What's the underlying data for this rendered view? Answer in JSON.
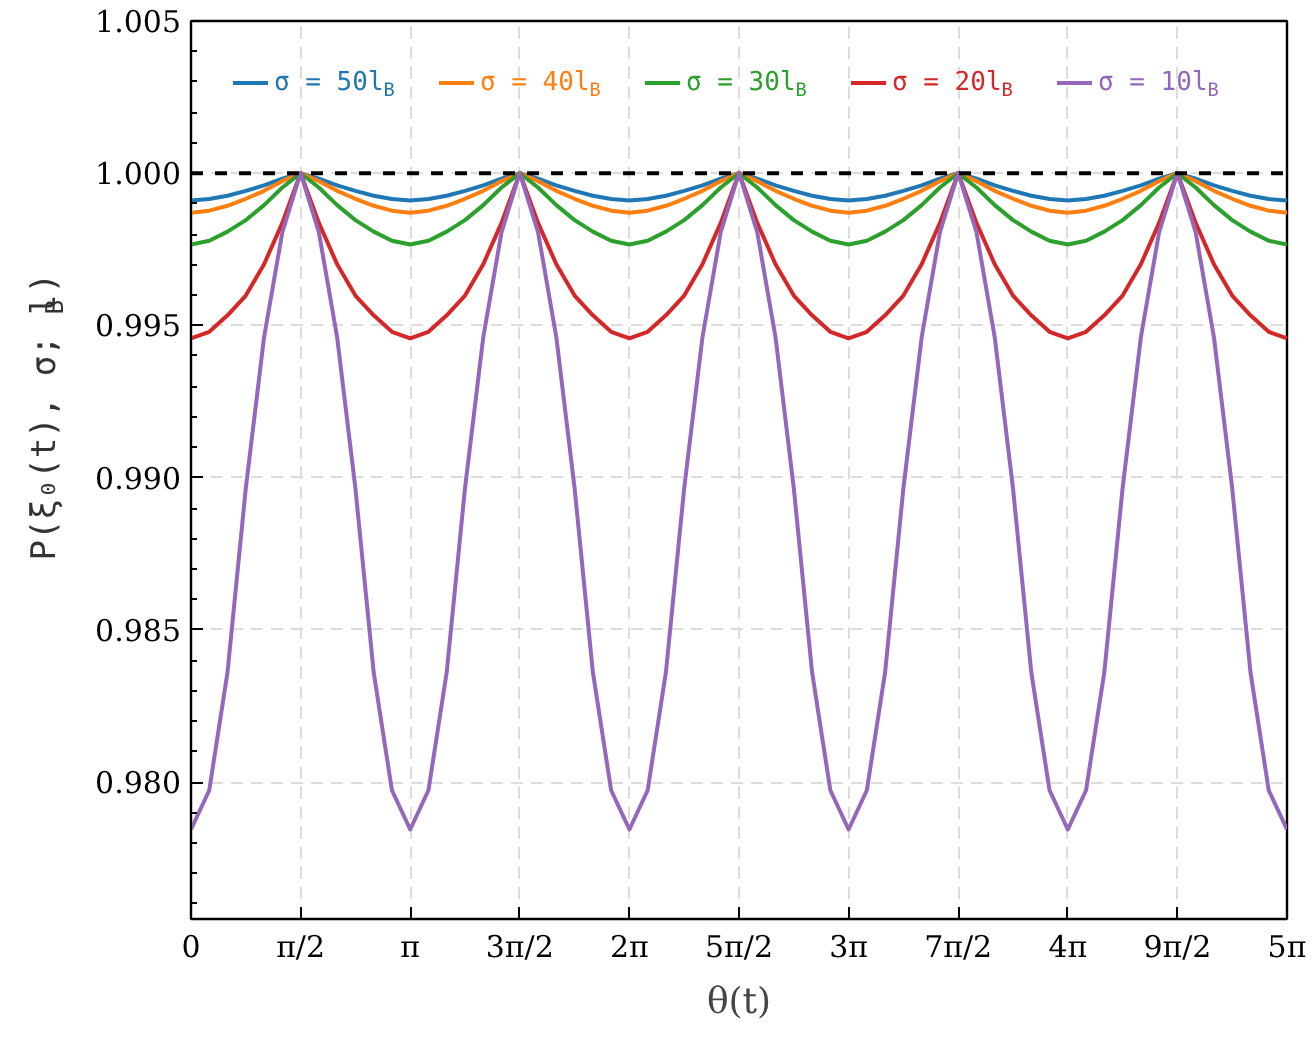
{
  "chart_data": {
    "type": "line",
    "xlabel": "θ(t)",
    "ylabel": "P(ξ₀(t), σ; l$_{B}$)",
    "x": [
      0,
      0.2618,
      0.5236,
      0.7854,
      1.0472,
      1.309,
      1.5708,
      1.8326,
      2.0944,
      2.3562,
      2.618,
      2.8798,
      3.1416,
      3.4034,
      3.6652,
      3.927,
      4.1888,
      4.4506,
      4.7124,
      4.9742,
      5.236,
      5.4978,
      5.7596,
      6.0214,
      6.2832,
      6.545,
      6.8068,
      7.0686,
      7.3304,
      7.5922,
      7.854,
      8.1158,
      8.3776,
      8.6394,
      8.9012,
      9.163,
      9.4248,
      9.6866,
      9.9484,
      10.2102,
      10.472,
      10.7338,
      10.9956,
      11.2574,
      11.5192,
      11.781,
      12.0428,
      12.3046,
      12.5664,
      12.8282,
      13.09,
      13.3518,
      13.6136,
      13.8754,
      14.1372,
      14.399,
      14.6608,
      14.9226,
      15.1844,
      15.4462,
      15.708
    ],
    "series": [
      {
        "name": "σ = 50l$_{B}$",
        "color": "#1f77b4",
        "values": [
          0.9991,
          0.99915,
          0.99926,
          0.99942,
          0.9996,
          0.99982,
          1.0,
          0.99982,
          0.9996,
          0.99942,
          0.99926,
          0.99915,
          0.9991,
          0.99915,
          0.99926,
          0.99942,
          0.9996,
          0.99982,
          1.0,
          0.99982,
          0.9996,
          0.99942,
          0.99926,
          0.99915,
          0.9991,
          0.99915,
          0.99926,
          0.99942,
          0.9996,
          0.99982,
          1.0,
          0.99982,
          0.9996,
          0.99942,
          0.99926,
          0.99915,
          0.9991,
          0.99915,
          0.99926,
          0.99942,
          0.9996,
          0.99982,
          1.0,
          0.99982,
          0.9996,
          0.99942,
          0.99926,
          0.99915,
          0.9991,
          0.99915,
          0.99926,
          0.99942,
          0.9996,
          0.99982,
          1.0,
          0.99982,
          0.9996,
          0.99942,
          0.99926,
          0.99915,
          0.9991
        ]
      },
      {
        "name": "σ = 40l$_{B}$",
        "color": "#ff7f0e",
        "values": [
          0.9987,
          0.99877,
          0.99893,
          0.99916,
          0.99942,
          0.99974,
          1.0,
          0.99974,
          0.99942,
          0.99916,
          0.99893,
          0.99877,
          0.9987,
          0.99877,
          0.99893,
          0.99916,
          0.99942,
          0.99974,
          1.0,
          0.99974,
          0.99942,
          0.99916,
          0.99893,
          0.99877,
          0.9987,
          0.99877,
          0.99893,
          0.99916,
          0.99942,
          0.99974,
          1.0,
          0.99974,
          0.99942,
          0.99916,
          0.99893,
          0.99877,
          0.9987,
          0.99877,
          0.99893,
          0.99916,
          0.99942,
          0.99974,
          1.0,
          0.99974,
          0.99942,
          0.99916,
          0.99893,
          0.99877,
          0.9987,
          0.99877,
          0.99893,
          0.99916,
          0.99942,
          0.99974,
          1.0,
          0.99974,
          0.99942,
          0.99916,
          0.99893,
          0.99877,
          0.9987
        ]
      },
      {
        "name": "σ = 30l$_{B}$",
        "color": "#2ca02c",
        "values": [
          0.99766,
          0.99778,
          0.99808,
          0.99846,
          0.99895,
          0.99953,
          1.0,
          0.99953,
          0.99895,
          0.99846,
          0.99808,
          0.99778,
          0.99766,
          0.99778,
          0.99808,
          0.99846,
          0.99895,
          0.99953,
          1.0,
          0.99953,
          0.99895,
          0.99846,
          0.99808,
          0.99778,
          0.99766,
          0.99778,
          0.99808,
          0.99846,
          0.99895,
          0.99953,
          1.0,
          0.99953,
          0.99895,
          0.99846,
          0.99808,
          0.99778,
          0.99766,
          0.99778,
          0.99808,
          0.99846,
          0.99895,
          0.99953,
          1.0,
          0.99953,
          0.99895,
          0.99846,
          0.99808,
          0.99778,
          0.99766,
          0.99778,
          0.99808,
          0.99846,
          0.99895,
          0.99953,
          1.0,
          0.99953,
          0.99895,
          0.99846,
          0.99808,
          0.99778,
          0.99766
        ]
      },
      {
        "name": "σ = 20l$_{B}$",
        "color": "#d62728",
        "values": [
          0.99457,
          0.99479,
          0.99533,
          0.99598,
          0.99701,
          0.99837,
          1.0,
          0.99837,
          0.99701,
          0.99598,
          0.99533,
          0.99479,
          0.99457,
          0.99479,
          0.99533,
          0.99598,
          0.99701,
          0.99837,
          1.0,
          0.99837,
          0.99701,
          0.99598,
          0.99533,
          0.99479,
          0.99457,
          0.99479,
          0.99533,
          0.99598,
          0.99701,
          0.99837,
          1.0,
          0.99837,
          0.99701,
          0.99598,
          0.99533,
          0.99479,
          0.99457,
          0.99479,
          0.99533,
          0.99598,
          0.99701,
          0.99837,
          1.0,
          0.99837,
          0.99701,
          0.99598,
          0.99533,
          0.99479,
          0.99457,
          0.99479,
          0.99533,
          0.99598,
          0.99701,
          0.99837,
          1.0,
          0.99837,
          0.99701,
          0.99598,
          0.99533,
          0.99479,
          0.99457
        ]
      },
      {
        "name": "σ = 10l$_{B}$",
        "color": "#9467bd",
        "values": [
          0.97844,
          0.97973,
          0.98361,
          0.98965,
          0.99461,
          0.99806,
          1.0,
          0.99806,
          0.99461,
          0.98965,
          0.98361,
          0.97973,
          0.97844,
          0.97973,
          0.98361,
          0.98965,
          0.99461,
          0.99806,
          1.0,
          0.99806,
          0.99461,
          0.98965,
          0.98361,
          0.97973,
          0.97844,
          0.97973,
          0.98361,
          0.98965,
          0.99461,
          0.99806,
          1.0,
          0.99806,
          0.99461,
          0.98965,
          0.98361,
          0.97973,
          0.97844,
          0.97973,
          0.98361,
          0.98965,
          0.99461,
          0.99806,
          1.0,
          0.99806,
          0.99461,
          0.98965,
          0.98361,
          0.97973,
          0.97844,
          0.97973,
          0.98361,
          0.98965,
          0.99461,
          0.99806,
          1.0,
          0.99806,
          0.99461,
          0.98965,
          0.98361,
          0.97973,
          0.97844
        ]
      }
    ],
    "xlim": [
      0,
      15.708
    ],
    "xticks": [
      0,
      {
        "value": 1.5708,
        "label": "π/2"
      },
      {
        "value": 3.1416,
        "label": "π"
      },
      {
        "value": 4.7124,
        "label": "3π/2"
      },
      {
        "value": 6.2832,
        "label": "2π"
      },
      {
        "value": 7.854,
        "label": "5π/2"
      },
      {
        "value": 9.4248,
        "label": "3π"
      },
      {
        "value": 10.9956,
        "label": "7π/2"
      },
      {
        "value": 12.5664,
        "label": "4π"
      },
      {
        "value": 14.1372,
        "label": "9π/2"
      },
      {
        "value": 15.708,
        "label": "5π"
      }
    ],
    "ylim": [
      0.9755,
      1.005
    ],
    "yticks": [
      {
        "value": 0.98,
        "label": "0.980"
      },
      0.985,
      {
        "value": 0.99,
        "label": "0.990"
      },
      0.995,
      {
        "value": 1.0,
        "label": "1.000"
      },
      1.005
    ],
    "ref_lines": [
      {
        "axis": "y",
        "value": 1.0,
        "color": "#000000",
        "line_style": "dashed"
      }
    ],
    "grid": true,
    "legend": "top",
    "line_style": "solid",
    "marker": "none"
  }
}
